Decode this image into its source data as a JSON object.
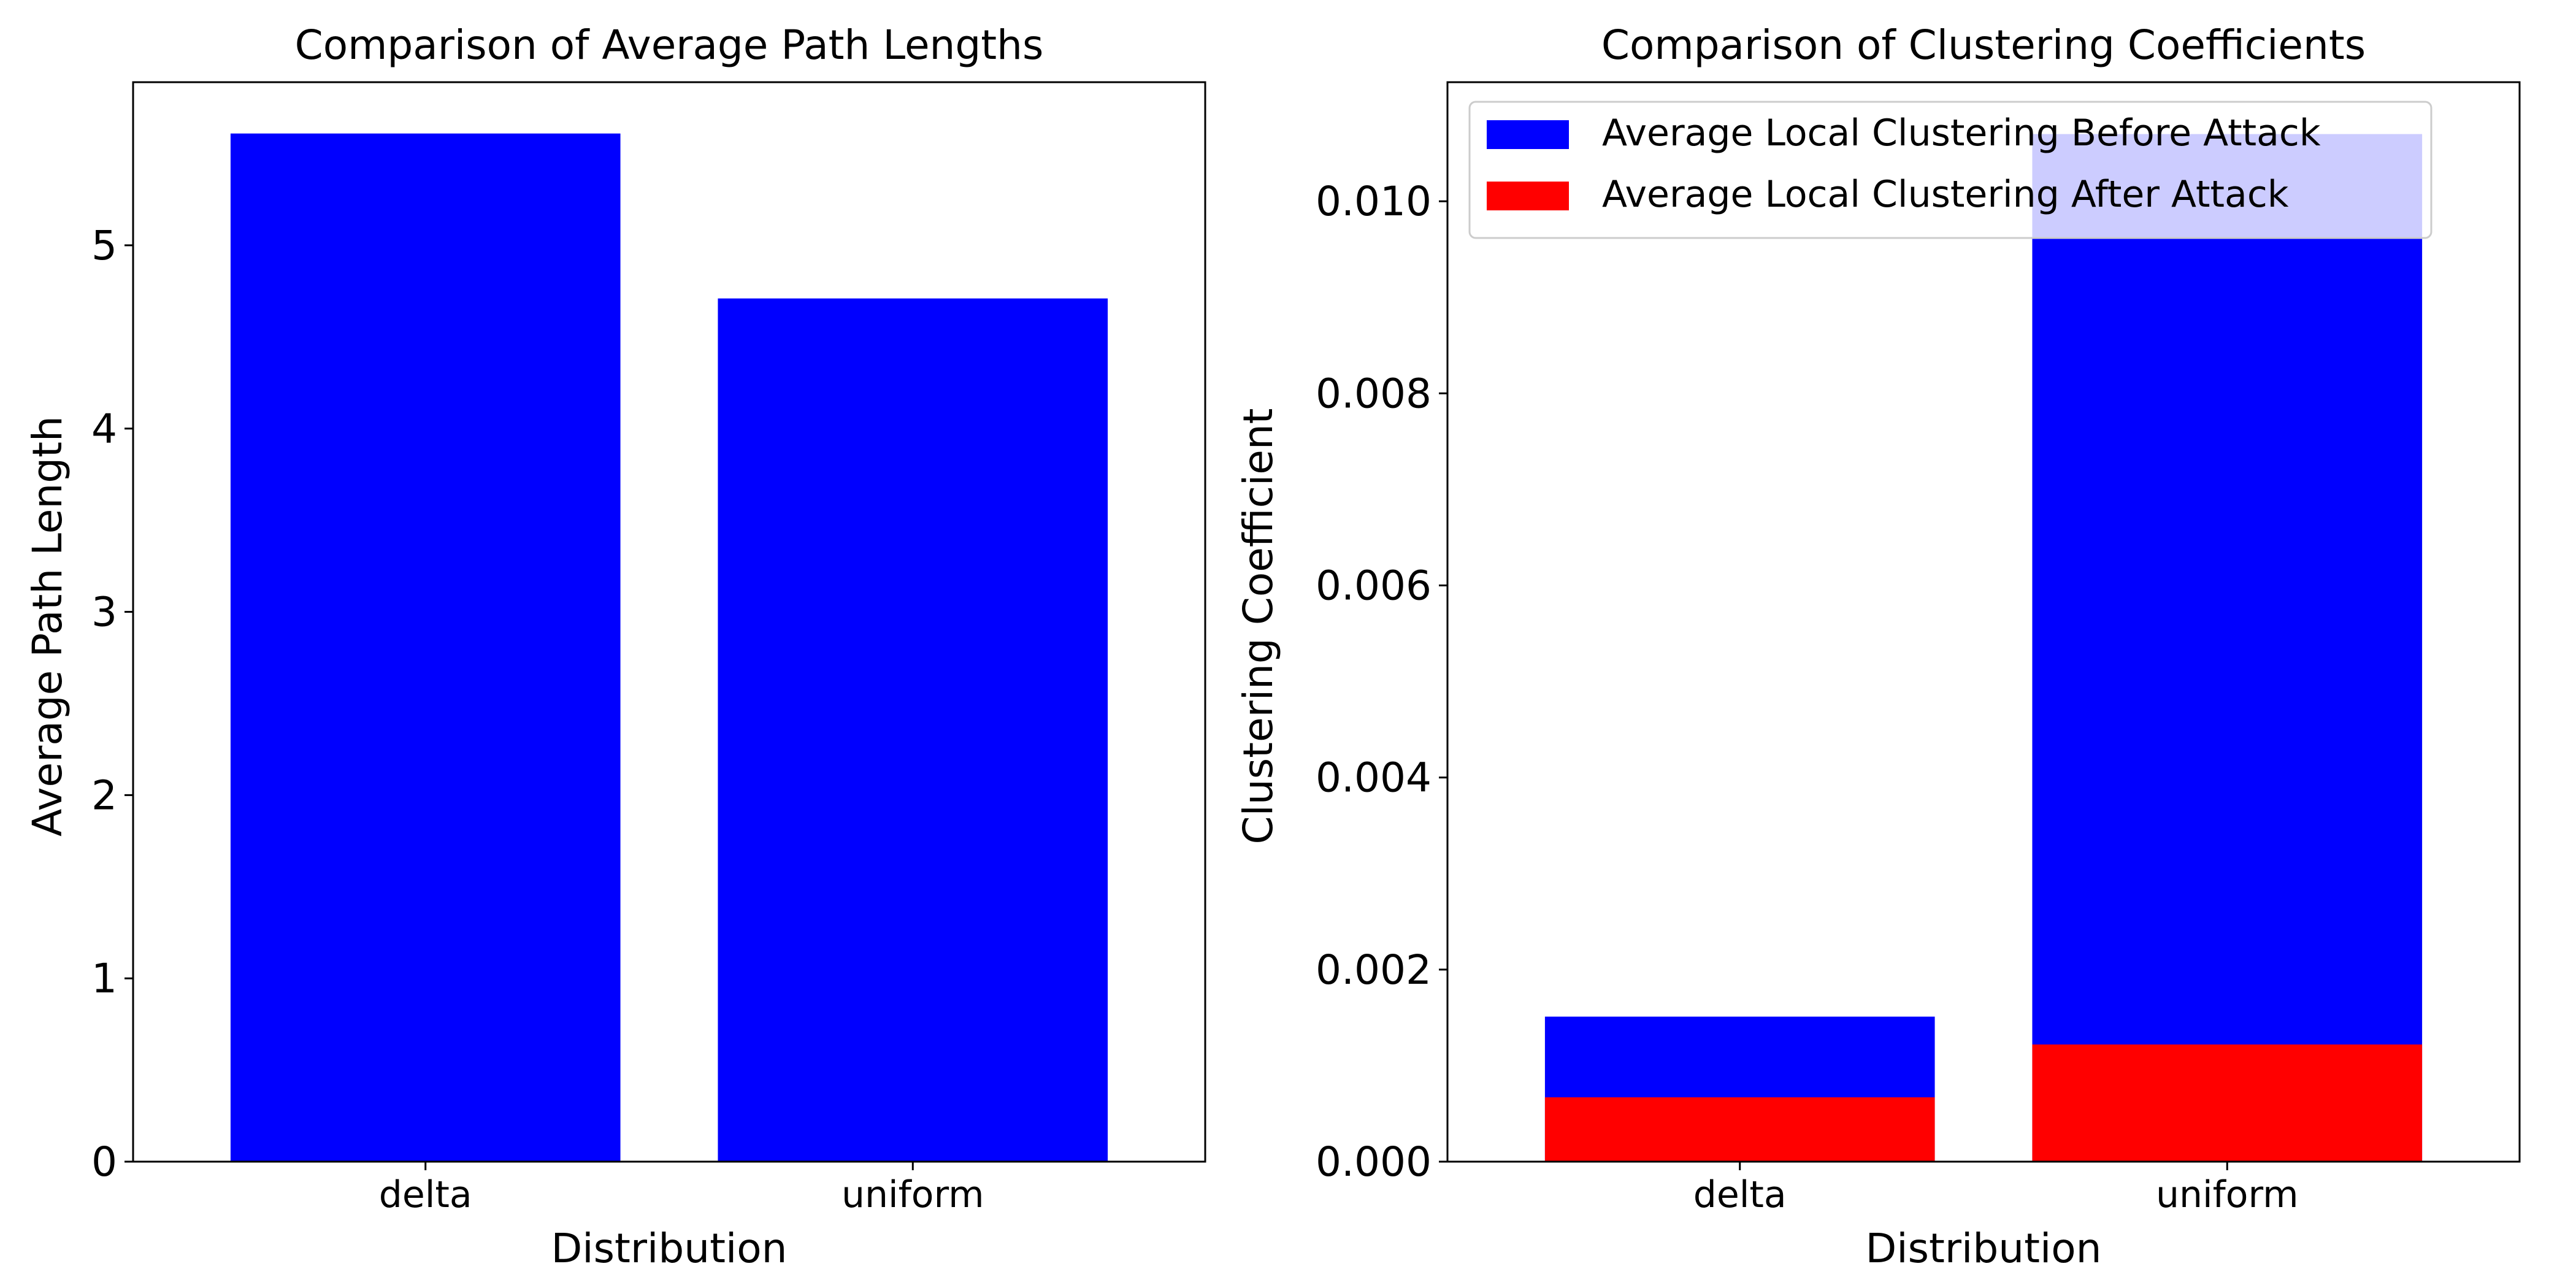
{
  "chart_data": [
    {
      "type": "bar",
      "title": "Comparison of Average Path Lengths",
      "xlabel": "Distribution",
      "ylabel": "Average Path Length",
      "categories": [
        "delta",
        "uniform"
      ],
      "series": [
        {
          "values": [
            5.61,
            4.71
          ],
          "color": "#0000ff"
        }
      ],
      "ylim": [
        0,
        5.89
      ],
      "yticks": [
        0,
        1,
        2,
        3,
        4,
        5
      ],
      "ytick_labels": [
        "0",
        "1",
        "2",
        "3",
        "4",
        "5"
      ],
      "grid": false,
      "legend": null
    },
    {
      "type": "bar",
      "stacked": "overlay",
      "title": "Comparison of Clustering Coefficients",
      "xlabel": "Distribution",
      "ylabel": "Clustering Coefficient",
      "categories": [
        "delta",
        "uniform"
      ],
      "series": [
        {
          "name": "Average Local Clustering Before Attack",
          "values": [
            0.00151,
            0.0107
          ],
          "color": "#0000ff"
        },
        {
          "name": "Average Local Clustering After Attack",
          "values": [
            0.00067,
            0.00122
          ],
          "color": "#ff0000"
        }
      ],
      "ylim": [
        0,
        0.01124
      ],
      "yticks": [
        0,
        0.002,
        0.004,
        0.006,
        0.008,
        0.01
      ],
      "ytick_labels": [
        "0.000",
        "0.002",
        "0.004",
        "0.006",
        "0.008",
        "0.010"
      ],
      "grid": false,
      "legend": "upper-left"
    }
  ]
}
